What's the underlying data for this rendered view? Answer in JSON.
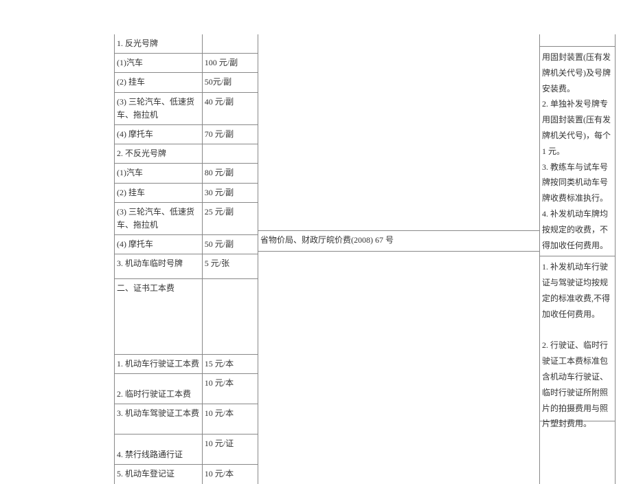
{
  "left_rows": [
    {
      "a": "1. 反光号牌",
      "b": ""
    },
    {
      "a": "(1)汽车",
      "b": "100 元/副"
    },
    {
      "a": "(2) 挂车",
      "b": "50元/副"
    },
    {
      "a": "(3) 三轮汽车、低速货车、拖拉机",
      "b": "40 元/副"
    },
    {
      "a": "(4) 摩托车",
      "b": "70 元/副"
    },
    {
      "a": "2. 不反光号牌",
      "b": ""
    },
    {
      "a": "(1)汽车",
      "b": "80 元/副"
    },
    {
      "a": "(2) 挂车",
      "b": "30 元/副"
    },
    {
      "a": "(3) 三轮汽车、低速货车、拖拉机",
      "b": "25 元/副"
    },
    {
      "a": "(4) 摩托车",
      "b": "50 元/副"
    },
    {
      "a": "3. 机动车临时号牌",
      "b": "5 元/张"
    }
  ],
  "section2_header": {
    "a": "二、证书工本费",
    "b": ""
  },
  "section2_rows": [
    {
      "a": "1. 机动车行驶证工本费",
      "b": "15 元/本"
    },
    {
      "a": "2. 临时行驶证工本费",
      "b": "10 元/本"
    },
    {
      "a": "3. 机动车驾驶证工本费",
      "b": "10 元/本"
    },
    {
      "a": "4. 禁行线路通行证",
      "b": "10 元/证"
    },
    {
      "a": "5. 机动车登记证",
      "b": "10 元/本"
    }
  ],
  "mid_bottom": "省物价局、财政厅皖价费(2008) 67 号",
  "right_top": "用固封装置(压有发牌机关代号)及号牌安装费。\n2. 单独补发号牌专用固封装置(压有发牌机关代号)，每个 1 元。\n3. 教练车与试车号牌按同类机动车号牌收费标准执行。\n4. 补发机动车牌均按规定的收费，不得加收任何费用。",
  "right_bottom": "1. 补发机动车行驶证与驾驶证均按规定的标准收费,不得加收任何费用。\n\n2. 行驶证、临时行驶证工本费标准包含机动车行驶证、临时行驶证所附照片的拍摄费用与照片塑封费用。",
  "colors": {
    "border": "#888888",
    "text": "#333333",
    "bg": "#ffffff"
  }
}
